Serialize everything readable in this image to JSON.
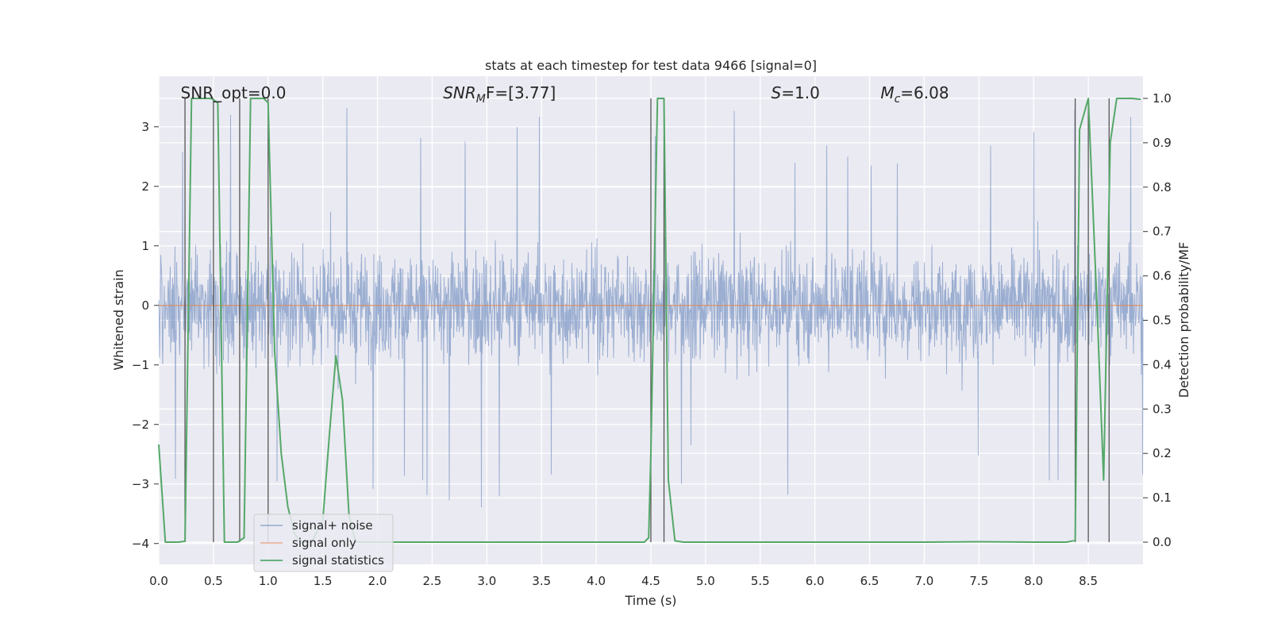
{
  "chart_data": {
    "type": "line",
    "title": "stats at each timestep for test data 9466 [signal=0]",
    "xlabel": "Time (s)",
    "ylabel_left": "Whitened strain",
    "ylabel_right": "Detection probability/MF",
    "xlim": [
      0.0,
      9.0
    ],
    "ylim_left": [
      -4.35,
      3.85
    ],
    "ylim_right": [
      -0.05,
      1.05
    ],
    "x_ticks": [
      0.0,
      0.5,
      1.0,
      1.5,
      2.0,
      2.5,
      3.0,
      3.5,
      4.0,
      4.5,
      5.0,
      5.5,
      6.0,
      6.5,
      7.0,
      7.5,
      8.0,
      8.5
    ],
    "x_tick_labels": [
      "0.0",
      "0.5",
      "1.0",
      "1.5",
      "2.0",
      "2.5",
      "3.0",
      "3.5",
      "4.0",
      "4.5",
      "5.0",
      "5.5",
      "6.0",
      "6.5",
      "7.0",
      "7.5",
      "8.0",
      "8.5"
    ],
    "y_left_ticks": [
      3,
      2,
      1,
      0,
      -1,
      -2,
      -3,
      -4
    ],
    "y_left_tick_labels": [
      "3",
      "2",
      "1",
      "0",
      "−1",
      "−2",
      "−3",
      "−4"
    ],
    "y_right_ticks": [
      1.0,
      0.9,
      0.8,
      0.7,
      0.6,
      0.5,
      0.4,
      0.3,
      0.2,
      0.1,
      0.0
    ],
    "y_right_tick_labels": [
      "1.0",
      "0.9",
      "0.8",
      "0.7",
      "0.6",
      "0.5",
      "0.4",
      "0.3",
      "0.2",
      "0.1",
      "0.0"
    ],
    "grid": true,
    "annotations": [
      {
        "plain": "SNR_opt=0.0",
        "x": 0.2
      },
      {
        "sym": "SNR",
        "sub": "M",
        "rest": "F=[3.77]",
        "x": 2.6
      },
      {
        "sym": "S",
        "rest": "=1.0",
        "x": 5.6
      },
      {
        "sym": "M",
        "sub": "c",
        "rest": "=6.08",
        "x": 6.6
      }
    ],
    "legend": {
      "placement": "lower-left",
      "entries": [
        {
          "label": "signal+ noise",
          "color": "#4c72b0"
        },
        {
          "label": "signal only",
          "color": "#dd8452"
        },
        {
          "label": "signal statistics",
          "color": "#55a868"
        }
      ]
    },
    "series": [
      {
        "name": "signal+ noise",
        "axis": "left",
        "color": "#4c72b0",
        "kind": "noise",
        "typical_abs_max": 1.9,
        "peak_max": 3.4,
        "peak_min": -4.0
      },
      {
        "name": "signal only",
        "axis": "left",
        "color": "#dd8452",
        "kind": "constant",
        "value": 0.0
      },
      {
        "name": "signal statistics",
        "axis": "right",
        "color": "#55a868",
        "x": [
          0.0,
          0.06,
          0.12,
          0.18,
          0.24,
          0.3,
          0.36,
          0.42,
          0.48,
          0.54,
          0.6,
          0.66,
          0.72,
          0.78,
          0.84,
          0.9,
          0.96,
          1.0,
          1.06,
          1.12,
          1.18,
          1.24,
          1.3,
          1.4,
          1.5,
          1.56,
          1.62,
          1.68,
          1.74,
          1.8,
          1.9,
          2.0,
          3.0,
          4.0,
          4.44,
          4.48,
          4.5,
          4.56,
          4.62,
          4.66,
          4.72,
          4.8,
          5.0,
          6.0,
          7.0,
          7.5,
          8.0,
          8.3,
          8.38,
          8.42,
          8.5,
          8.58,
          8.64,
          8.7,
          8.76,
          8.9,
          8.98
        ],
        "y": [
          0.22,
          0.0,
          0.0,
          0.0,
          0.002,
          1.0,
          1.0,
          1.0,
          1.0,
          0.99,
          0.0,
          0.0,
          0.0,
          0.01,
          1.0,
          1.0,
          1.0,
          0.99,
          0.43,
          0.2,
          0.08,
          0.02,
          0.0,
          0.0,
          0.05,
          0.24,
          0.42,
          0.32,
          0.06,
          0.0,
          0.0,
          0.0,
          0.0,
          0.0,
          0.0,
          0.01,
          0.2,
          1.0,
          1.0,
          0.14,
          0.003,
          0.0,
          0.0,
          0.0,
          0.0,
          0.001,
          0.0,
          0.0,
          0.004,
          0.93,
          1.0,
          0.53,
          0.14,
          0.9,
          1.0,
          1.0,
          0.998
        ]
      }
    ],
    "vertical_markers": [
      0.24,
      0.5,
      0.74,
      1.0,
      4.5,
      4.62,
      8.38,
      8.5,
      8.69
    ],
    "vertical_marker_color": "#555555"
  }
}
